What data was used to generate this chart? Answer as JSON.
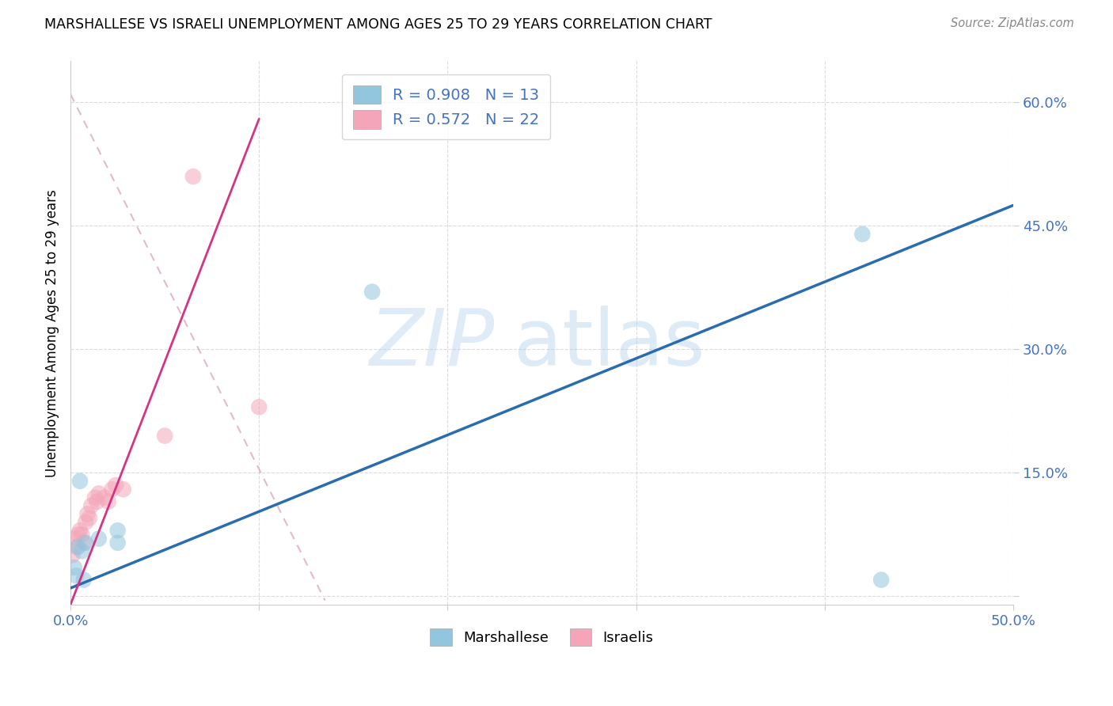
{
  "title": "MARSHALLESE VS ISRAELI UNEMPLOYMENT AMONG AGES 25 TO 29 YEARS CORRELATION CHART",
  "source": "Source: ZipAtlas.com",
  "ylabel": "Unemployment Among Ages 25 to 29 years",
  "xlim": [
    0.0,
    0.5
  ],
  "ylim": [
    -0.01,
    0.65
  ],
  "xticks": [
    0.0,
    0.1,
    0.2,
    0.3,
    0.4,
    0.5
  ],
  "xtick_labels_visible": [
    "0.0%",
    "",
    "",
    "",
    "",
    "50.0%"
  ],
  "yticks": [
    0.0,
    0.15,
    0.3,
    0.45,
    0.6
  ],
  "ytick_labels": [
    "",
    "15.0%",
    "30.0%",
    "45.0%",
    "60.0%"
  ],
  "blue_color": "#92c5de",
  "pink_color": "#f4a6b8",
  "blue_r": "0.908",
  "blue_n": "13",
  "pink_r": "0.572",
  "pink_n": "22",
  "legend_label_blue": "Marshallese",
  "legend_label_pink": "Israelis",
  "watermark_zip": "ZIP",
  "watermark_atlas": "atlas",
  "blue_scatter_x": [
    0.002,
    0.003,
    0.004,
    0.005,
    0.006,
    0.007,
    0.008,
    0.015,
    0.025,
    0.025,
    0.16,
    0.42,
    0.43
  ],
  "blue_scatter_y": [
    0.035,
    0.025,
    0.06,
    0.14,
    0.055,
    0.02,
    0.065,
    0.07,
    0.065,
    0.08,
    0.37,
    0.44,
    0.02
  ],
  "pink_scatter_x": [
    0.001,
    0.002,
    0.003,
    0.004,
    0.005,
    0.006,
    0.007,
    0.008,
    0.009,
    0.01,
    0.011,
    0.013,
    0.014,
    0.015,
    0.018,
    0.02,
    0.022,
    0.024,
    0.028,
    0.05,
    0.065,
    0.1
  ],
  "pink_scatter_y": [
    0.05,
    0.07,
    0.06,
    0.075,
    0.08,
    0.075,
    0.065,
    0.09,
    0.1,
    0.095,
    0.11,
    0.12,
    0.115,
    0.125,
    0.12,
    0.115,
    0.13,
    0.135,
    0.13,
    0.195,
    0.51,
    0.23
  ],
  "blue_line_x": [
    0.0,
    0.5
  ],
  "blue_line_y": [
    0.01,
    0.475
  ],
  "pink_solid_line_x": [
    0.0,
    0.1
  ],
  "pink_solid_line_y": [
    -0.01,
    0.58
  ],
  "pink_dash_line_x": [
    0.0,
    0.135
  ],
  "pink_dash_line_y": [
    0.61,
    -0.005
  ],
  "tick_label_color": "#4472c4",
  "line_blue_color": "#2b6cb0",
  "line_pink_color": "#d63384",
  "grid_color": "#cccccc"
}
